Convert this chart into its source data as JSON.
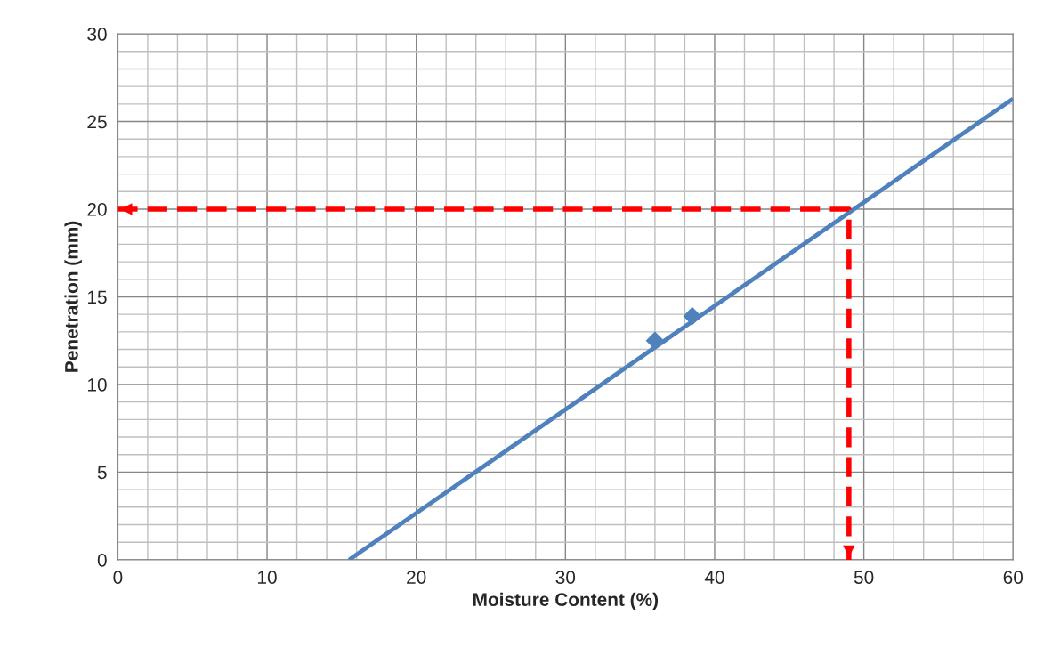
{
  "chart_data": {
    "type": "line",
    "xlabel": "Moisture Content (%)",
    "ylabel": "Penetration (mm)",
    "xlim": [
      0,
      60
    ],
    "ylim": [
      0,
      30
    ],
    "xticks": [
      0,
      10,
      20,
      30,
      40,
      50,
      60
    ],
    "yticks": [
      0,
      5,
      10,
      15,
      20,
      25,
      30
    ],
    "grid": true,
    "series": [
      {
        "color": "#4f81bd",
        "x": [
          15.5,
          60
        ],
        "values": [
          0,
          26.3
        ],
        "marker": "none",
        "line_style": "solid"
      },
      {
        "type": "scatter",
        "color": "#4f81bd",
        "x": [
          36.0,
          38.5
        ],
        "values": [
          12.5,
          13.9
        ],
        "marker": "diamond"
      },
      {
        "color": "#ff0000",
        "x": [
          0,
          49,
          49
        ],
        "values": [
          20,
          20,
          0
        ],
        "marker": "none",
        "line_style": "dashed"
      }
    ]
  }
}
